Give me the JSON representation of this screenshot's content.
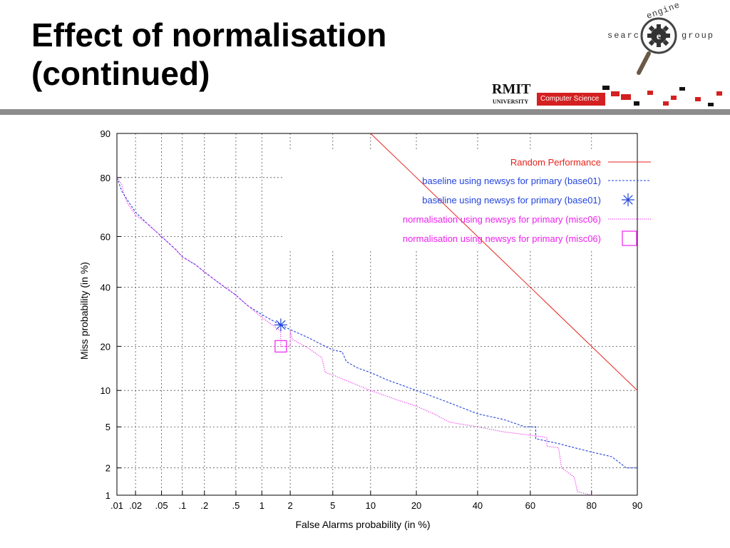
{
  "slide": {
    "title_line1": "Effect of normalisation",
    "title_line2": "(continued)"
  },
  "logo": {
    "search": "search",
    "group": "group",
    "engine": "engine",
    "e_glyph": "e",
    "university_name": "RMIT",
    "university_sub": "UNIVERSITY",
    "department": "Computer Science",
    "colors": {
      "red": "#d42020",
      "dark": "#111111",
      "grey": "#8c8c8c"
    }
  },
  "chart_data": {
    "type": "line",
    "xlabel": "False Alarms probability (in %)",
    "ylabel": "Miss probability (in %)",
    "x_scale": "normal-deviate",
    "y_scale": "normal-deviate",
    "xlim": [
      0.01,
      90
    ],
    "ylim": [
      1,
      90
    ],
    "x_ticks": [
      0.01,
      0.02,
      0.05,
      0.1,
      0.2,
      0.5,
      1,
      2,
      5,
      10,
      20,
      40,
      60,
      80,
      90
    ],
    "x_tick_labels": [
      ".01",
      ".02",
      ".05",
      ".1",
      ".2",
      ".5",
      "1",
      "2",
      "5",
      "10",
      "20",
      "40",
      "60",
      "80",
      "90"
    ],
    "y_ticks": [
      1,
      2,
      5,
      10,
      20,
      40,
      60,
      80,
      90
    ],
    "y_tick_labels": [
      "1",
      "2",
      "5",
      "10",
      "20",
      "40",
      "60",
      "80",
      "90"
    ],
    "grid": true,
    "legend_position": "top-right",
    "series": [
      {
        "name": "Random Performance",
        "color": "#e8231c",
        "style": "solid",
        "points": [
          [
            10,
            90
          ],
          [
            20,
            80
          ],
          [
            40,
            60
          ],
          [
            60,
            40
          ],
          [
            80,
            20
          ],
          [
            90,
            10
          ]
        ]
      },
      {
        "name": "baseline using newsys for primary (base01)",
        "color": "#2244dd",
        "style": "dashed",
        "points": [
          [
            0.01,
            80
          ],
          [
            0.012,
            76
          ],
          [
            0.015,
            73
          ],
          [
            0.02,
            69
          ],
          [
            0.03,
            65
          ],
          [
            0.05,
            60
          ],
          [
            0.08,
            55
          ],
          [
            0.1,
            52
          ],
          [
            0.15,
            49
          ],
          [
            0.2,
            46
          ],
          [
            0.3,
            42
          ],
          [
            0.5,
            37
          ],
          [
            0.7,
            33
          ],
          [
            1,
            30
          ],
          [
            1.3,
            28
          ],
          [
            1.6,
            26.5
          ],
          [
            2,
            25
          ],
          [
            3,
            22.5
          ],
          [
            4,
            20.5
          ],
          [
            5,
            19
          ],
          [
            6,
            18.5
          ],
          [
            6.5,
            16
          ],
          [
            8,
            14.5
          ],
          [
            10,
            13.5
          ],
          [
            13,
            12
          ],
          [
            20,
            10
          ],
          [
            30,
            8
          ],
          [
            40,
            6.5
          ],
          [
            50,
            5.8
          ],
          [
            58,
            5
          ],
          [
            60,
            5
          ],
          [
            62,
            5
          ],
          [
            62,
            3.9
          ],
          [
            70,
            3.5
          ],
          [
            75,
            3.2
          ],
          [
            80,
            2.9
          ],
          [
            85,
            2.6
          ],
          [
            87,
            2.2
          ],
          [
            88,
            2
          ],
          [
            90,
            2
          ]
        ]
      },
      {
        "name": "baseline using newsys for primary (base01)",
        "color": "#2244dd",
        "style": "marker-star",
        "points": [
          [
            1.6,
            26.5
          ]
        ]
      },
      {
        "name": "normalisation using newsys for primary (misc06)",
        "color": "#ee22ee",
        "style": "dotted",
        "points": [
          [
            0.01,
            80
          ],
          [
            0.012,
            78
          ],
          [
            0.013,
            75
          ],
          [
            0.015,
            72
          ],
          [
            0.02,
            68
          ],
          [
            0.03,
            65
          ],
          [
            0.05,
            60
          ],
          [
            0.08,
            55
          ],
          [
            0.1,
            52
          ],
          [
            0.15,
            49
          ],
          [
            0.2,
            46
          ],
          [
            0.3,
            42
          ],
          [
            0.5,
            37
          ],
          [
            0.7,
            33
          ],
          [
            1,
            29
          ],
          [
            1.3,
            26.5
          ],
          [
            1.6,
            24.5
          ],
          [
            1.6,
            20
          ],
          [
            2,
            20
          ],
          [
            2,
            24.5
          ],
          [
            2.1,
            22
          ],
          [
            3,
            19.5
          ],
          [
            4,
            17
          ],
          [
            4.3,
            13.5
          ],
          [
            5,
            13
          ],
          [
            7,
            11.5
          ],
          [
            10,
            10
          ],
          [
            15,
            8.5
          ],
          [
            20,
            7.5
          ],
          [
            25,
            6.5
          ],
          [
            30,
            5.5
          ],
          [
            40,
            5
          ],
          [
            50,
            4.5
          ],
          [
            60,
            4.2
          ],
          [
            66,
            4
          ],
          [
            66,
            3.3
          ],
          [
            70,
            3.2
          ],
          [
            71,
            2
          ],
          [
            75,
            1.6
          ],
          [
            76,
            1.1
          ],
          [
            80,
            1
          ],
          [
            81,
            1
          ]
        ]
      },
      {
        "name": "normalisation using newsys for primary (misc06)",
        "color": "#ee22ee",
        "style": "marker-square",
        "points": [
          [
            1.6,
            20
          ]
        ]
      }
    ]
  }
}
